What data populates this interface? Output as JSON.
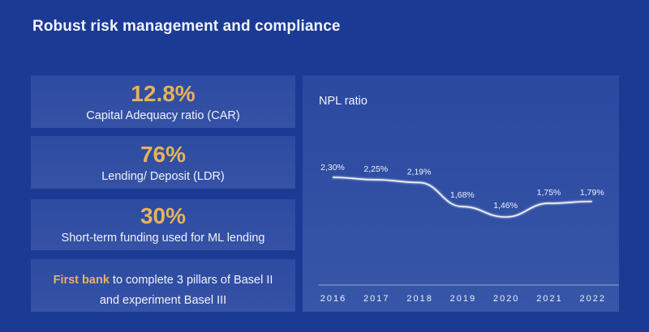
{
  "page": {
    "title": "Robust risk management and compliance"
  },
  "cards": [
    {
      "value": "12.8%",
      "label": "Capital Adequacy ratio (CAR)"
    },
    {
      "value": "76%",
      "label": "Lending/ Deposit (LDR)"
    },
    {
      "value": "30%",
      "label": "Short-term funding used for ML lending"
    },
    {
      "highlight": "First bank",
      "text_line1": " to complete 3 pillars of Basel II",
      "text_line2": "and experiment Basel III"
    }
  ],
  "colors": {
    "background": "#1a3a94",
    "accent": "#e7b25a",
    "text": "#f1f3f9"
  },
  "chart_data": {
    "type": "line",
    "title": "NPL ratio",
    "xlabel": "",
    "ylabel": "",
    "categories": [
      "2016",
      "2017",
      "2018",
      "2019",
      "2020",
      "2021",
      "2022"
    ],
    "series": [
      {
        "name": "NPL ratio",
        "values": [
          2.3,
          2.25,
          2.19,
          1.68,
          1.46,
          1.75,
          1.79
        ],
        "labels": [
          "2,30%",
          "2,25%",
          "2,19%",
          "1,68%",
          "1,46%",
          "1,75%",
          "1,79%"
        ]
      }
    ],
    "grid": false,
    "legend": "none",
    "smooth": true
  }
}
